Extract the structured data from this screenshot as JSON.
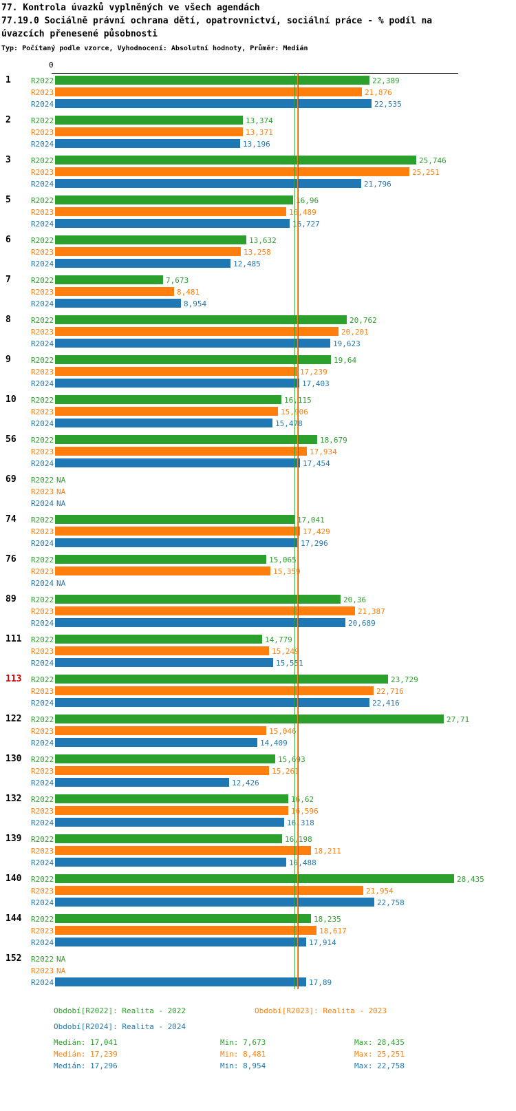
{
  "header": {
    "line1": "77. Kontrola úvazků vyplněných ve všech agendách",
    "line2a": "77.19.0 Sociálně právní ochrana dětí, opatrovnictví, sociální práce - % podíl na",
    "line2b": "úvazcích přenesené působnosti",
    "line3": "Typ: Počítaný podle vzorce, Vyhodnocení: Absolutní hodnoty, Průměr: Medián"
  },
  "chart_data": {
    "type": "bar",
    "orientation": "horizontal",
    "title": "77. Kontrola úvazků vyplněných ve všech agendách",
    "subtitle": "77.19.0 Sociálně právní ochrana dětí, opatrovnictví, sociální práce - % podíl na úvazcích přenesené působnosti",
    "note": "Typ: Počítaný podle vzorce, Vyhodnocení: Absolutní hodnoty, Průměr: Medián",
    "axis_zero_label": "0",
    "x_axis_range": [
      0,
      29
    ],
    "grid": false,
    "decimal_separator": ",",
    "na_label": "NA",
    "highlight_color": "#cc0000",
    "series": [
      {
        "name": "R2022",
        "color": "#2ca02c",
        "median": 17.041,
        "min": 7.673,
        "max": 28.435
      },
      {
        "name": "R2023",
        "color": "#ff7f0e",
        "median": 17.239,
        "min": 8.481,
        "max": 25.251
      },
      {
        "name": "R2024",
        "color": "#1f77b4",
        "median": 17.296,
        "min": 8.954,
        "max": 22.758
      }
    ],
    "groups": [
      {
        "id": "1",
        "highlight": false,
        "values": [
          22.389,
          21.876,
          22.535
        ]
      },
      {
        "id": "2",
        "highlight": false,
        "values": [
          13.374,
          13.371,
          13.196
        ]
      },
      {
        "id": "3",
        "highlight": false,
        "values": [
          25.746,
          25.251,
          21.796
        ]
      },
      {
        "id": "5",
        "highlight": false,
        "values": [
          16.96,
          16.489,
          16.727
        ]
      },
      {
        "id": "6",
        "highlight": false,
        "values": [
          13.632,
          13.258,
          12.485
        ]
      },
      {
        "id": "7",
        "highlight": false,
        "values": [
          7.673,
          8.481,
          8.954
        ]
      },
      {
        "id": "8",
        "highlight": false,
        "values": [
          20.762,
          20.201,
          19.623
        ]
      },
      {
        "id": "9",
        "highlight": false,
        "values": [
          19.64,
          17.239,
          17.403
        ]
      },
      {
        "id": "10",
        "highlight": false,
        "values": [
          16.115,
          15.906,
          15.478
        ]
      },
      {
        "id": "56",
        "highlight": false,
        "values": [
          18.679,
          17.934,
          17.454
        ]
      },
      {
        "id": "69",
        "highlight": false,
        "values": [
          null,
          null,
          null
        ]
      },
      {
        "id": "74",
        "highlight": false,
        "values": [
          17.041,
          17.429,
          17.296
        ]
      },
      {
        "id": "76",
        "highlight": false,
        "values": [
          15.065,
          15.359,
          null
        ]
      },
      {
        "id": "89",
        "highlight": false,
        "values": [
          20.36,
          21.387,
          20.689
        ]
      },
      {
        "id": "111",
        "highlight": false,
        "values": [
          14.779,
          15.249,
          15.551
        ]
      },
      {
        "id": "113",
        "highlight": true,
        "values": [
          23.729,
          22.716,
          22.416
        ]
      },
      {
        "id": "122",
        "highlight": false,
        "values": [
          27.71,
          15.046,
          14.409
        ]
      },
      {
        "id": "130",
        "highlight": false,
        "values": [
          15.693,
          15.261,
          12.426
        ]
      },
      {
        "id": "132",
        "highlight": false,
        "values": [
          16.62,
          16.596,
          16.318
        ]
      },
      {
        "id": "139",
        "highlight": false,
        "values": [
          16.198,
          18.211,
          16.488
        ]
      },
      {
        "id": "140",
        "highlight": false,
        "values": [
          28.435,
          21.954,
          22.758
        ]
      },
      {
        "id": "144",
        "highlight": false,
        "values": [
          18.235,
          18.617,
          17.914
        ]
      },
      {
        "id": "152",
        "highlight": false,
        "values": [
          null,
          null,
          17.89
        ]
      }
    ]
  },
  "legend": {
    "row1_left": "Období[R2022]: Realita - 2022",
    "row1_right": "Období[R2023]: Realita - 2023",
    "row2_left": "Období[R2024]: Realita - 2024"
  },
  "stats_rows": [
    {
      "median": "Medián: 17,041",
      "min": "Min: 7,673",
      "max": "Max: 28,435"
    },
    {
      "median": "Medián: 17,239",
      "min": "Min: 8,481",
      "max": "Max: 25,251"
    },
    {
      "median": "Medián: 17,296",
      "min": "Min: 8,954",
      "max": "Max: 22,758"
    }
  ]
}
